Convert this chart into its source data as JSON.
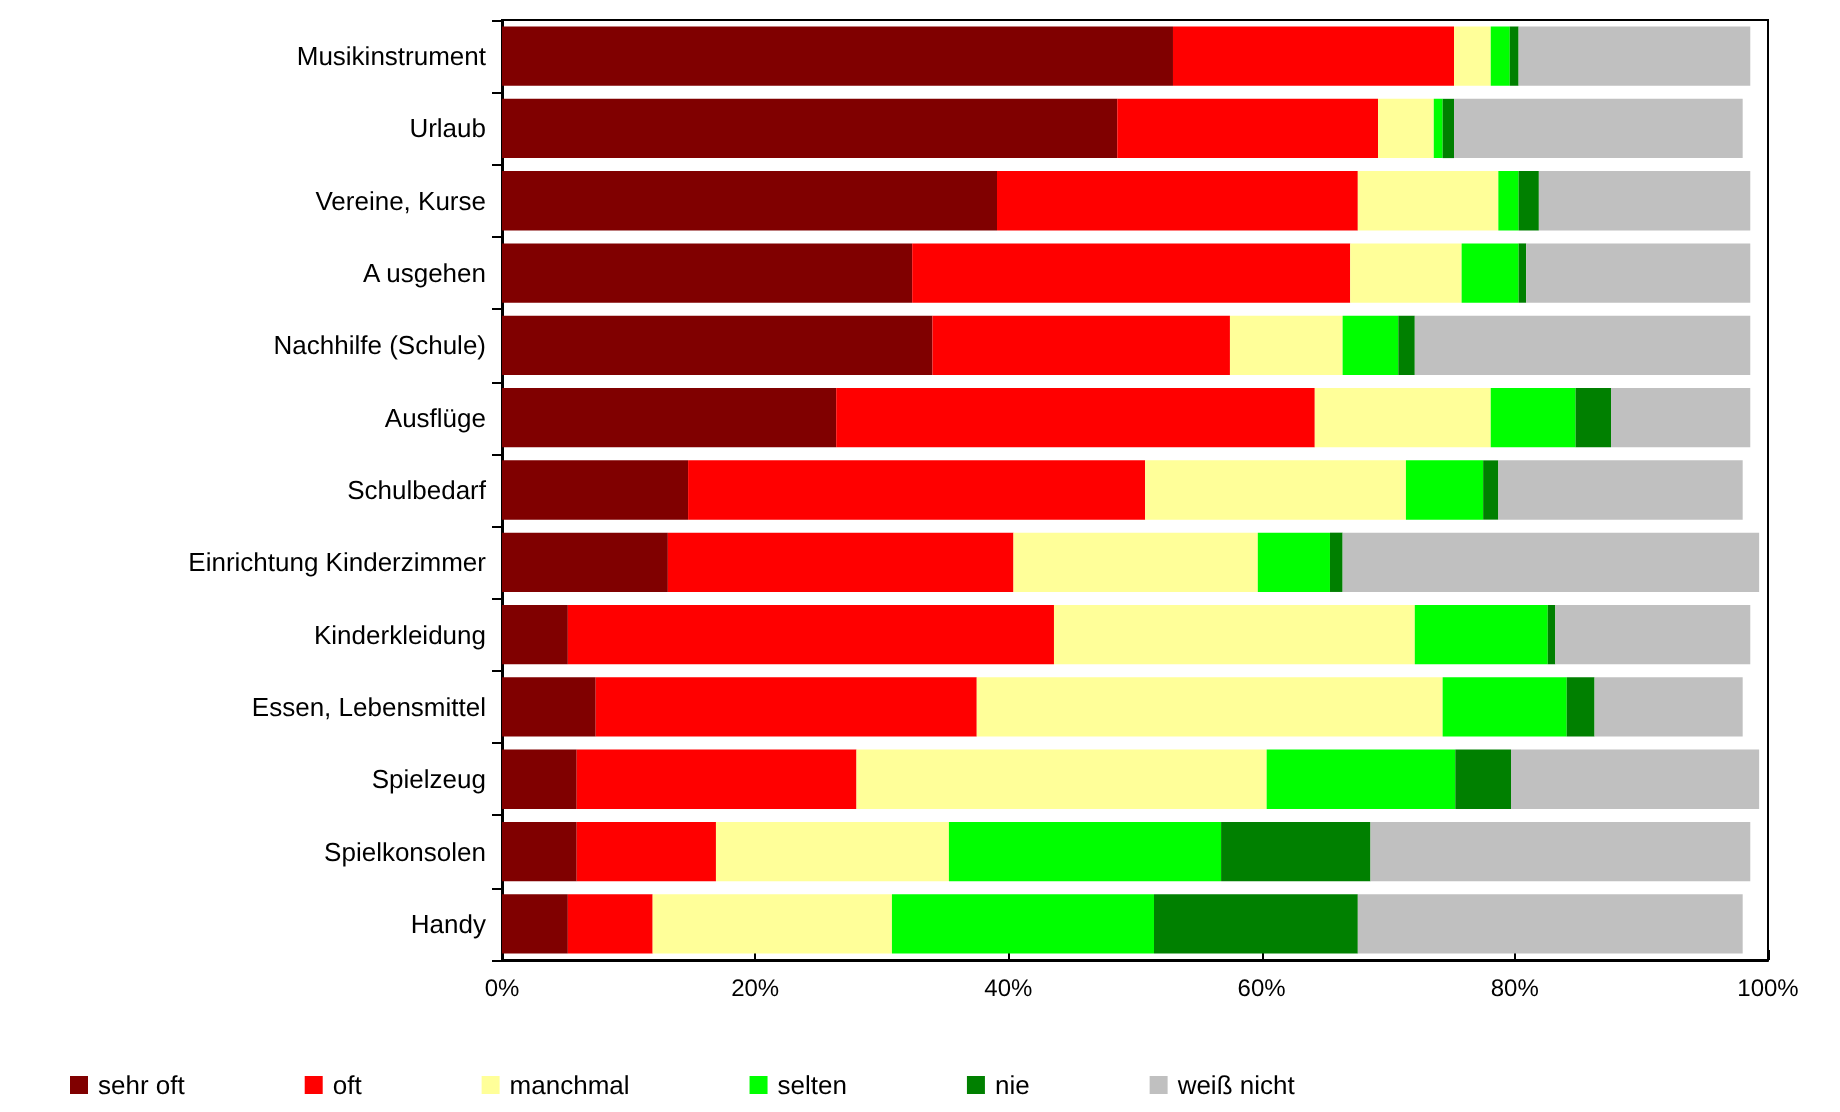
{
  "chart_data": {
    "type": "bar",
    "orientation": "horizontal",
    "stacked": true,
    "grid": false,
    "legend": "bottom",
    "categories": [
      "Musikinstrument",
      "Urlaub",
      "Vereine, Kurse",
      "A usgehen",
      "Nachhilfe (Schule)",
      "Ausflüge",
      "Schulbedarf",
      "Einrichtung Kinderzimmer",
      "Kinderkleidung",
      "Essen, Lebensmittel",
      "Spielzeug",
      "Spielkonsolen",
      "Handy"
    ],
    "xlim": [
      0,
      100
    ],
    "xticks": [
      {
        "value": 0,
        "label": "0%"
      },
      {
        "value": 20,
        "label": "20%"
      },
      {
        "value": 40,
        "label": "40%"
      },
      {
        "value": 60,
        "label": "60%"
      },
      {
        "value": 80,
        "label": "80%"
      },
      {
        "value": 100,
        "label": "100%"
      }
    ],
    "series": [
      {
        "name": "sehr oft",
        "color": "#800000",
        "values": [
          53.0,
          48.6,
          39.1,
          32.4,
          34.0,
          26.4,
          14.7,
          13.1,
          5.2,
          7.4,
          5.9,
          5.9,
          5.2
        ]
      },
      {
        "name": "oft",
        "color": "#ff0000",
        "values": [
          22.2,
          20.6,
          28.5,
          34.6,
          23.5,
          37.8,
          36.1,
          27.3,
          38.4,
          30.1,
          22.1,
          11.0,
          6.7
        ]
      },
      {
        "name": "manchmal",
        "color": "#ffff99",
        "values": [
          2.9,
          4.4,
          11.1,
          8.8,
          8.9,
          13.9,
          20.6,
          19.3,
          28.5,
          36.8,
          32.4,
          18.4,
          18.9
        ]
      },
      {
        "name": "selten",
        "color": "#00ff00",
        "values": [
          1.5,
          0.7,
          1.6,
          4.5,
          4.4,
          6.7,
          6.1,
          5.7,
          10.5,
          9.8,
          14.9,
          21.5,
          20.7
        ]
      },
      {
        "name": "nie",
        "color": "#008000",
        "values": [
          0.7,
          0.9,
          1.6,
          0.6,
          1.3,
          2.8,
          1.2,
          1.0,
          0.6,
          2.2,
          4.4,
          11.8,
          16.1
        ]
      },
      {
        "name": "weiß nicht",
        "color": "#c0c0c0",
        "values": [
          18.3,
          22.8,
          16.7,
          17.7,
          26.5,
          11.0,
          19.3,
          32.9,
          15.4,
          11.7,
          19.6,
          30.0,
          30.4
        ]
      }
    ]
  }
}
